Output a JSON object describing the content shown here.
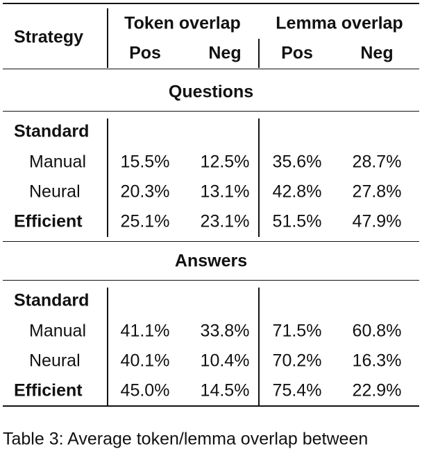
{
  "header": {
    "strategy": "Strategy",
    "groups": [
      "Token overlap",
      "Lemma overlap"
    ],
    "subcols": [
      "Pos",
      "Neg",
      "Pos",
      "Neg"
    ]
  },
  "sections": [
    {
      "title": "Questions",
      "group": "Standard",
      "rows": [
        {
          "label": "Manual",
          "cells": [
            "15.5%",
            "12.5%",
            "35.6%",
            "28.7%"
          ]
        },
        {
          "label": "Neural",
          "cells": [
            "20.3%",
            "13.1%",
            "42.8%",
            "27.8%"
          ]
        },
        {
          "label": "Efficient",
          "bold": true,
          "cells": [
            "25.1%",
            "23.1%",
            "51.5%",
            "47.9%"
          ]
        }
      ]
    },
    {
      "title": "Answers",
      "group": "Standard",
      "rows": [
        {
          "label": "Manual",
          "cells": [
            "41.1%",
            "33.8%",
            "71.5%",
            "60.8%"
          ]
        },
        {
          "label": "Neural",
          "cells": [
            "40.1%",
            "10.4%",
            "70.2%",
            "16.3%"
          ]
        },
        {
          "label": "Efficient",
          "bold": true,
          "cells": [
            "45.0%",
            "14.5%",
            "75.4%",
            "22.9%"
          ]
        }
      ]
    }
  ],
  "caption": "Table 3: Average token/lemma overlap between"
}
